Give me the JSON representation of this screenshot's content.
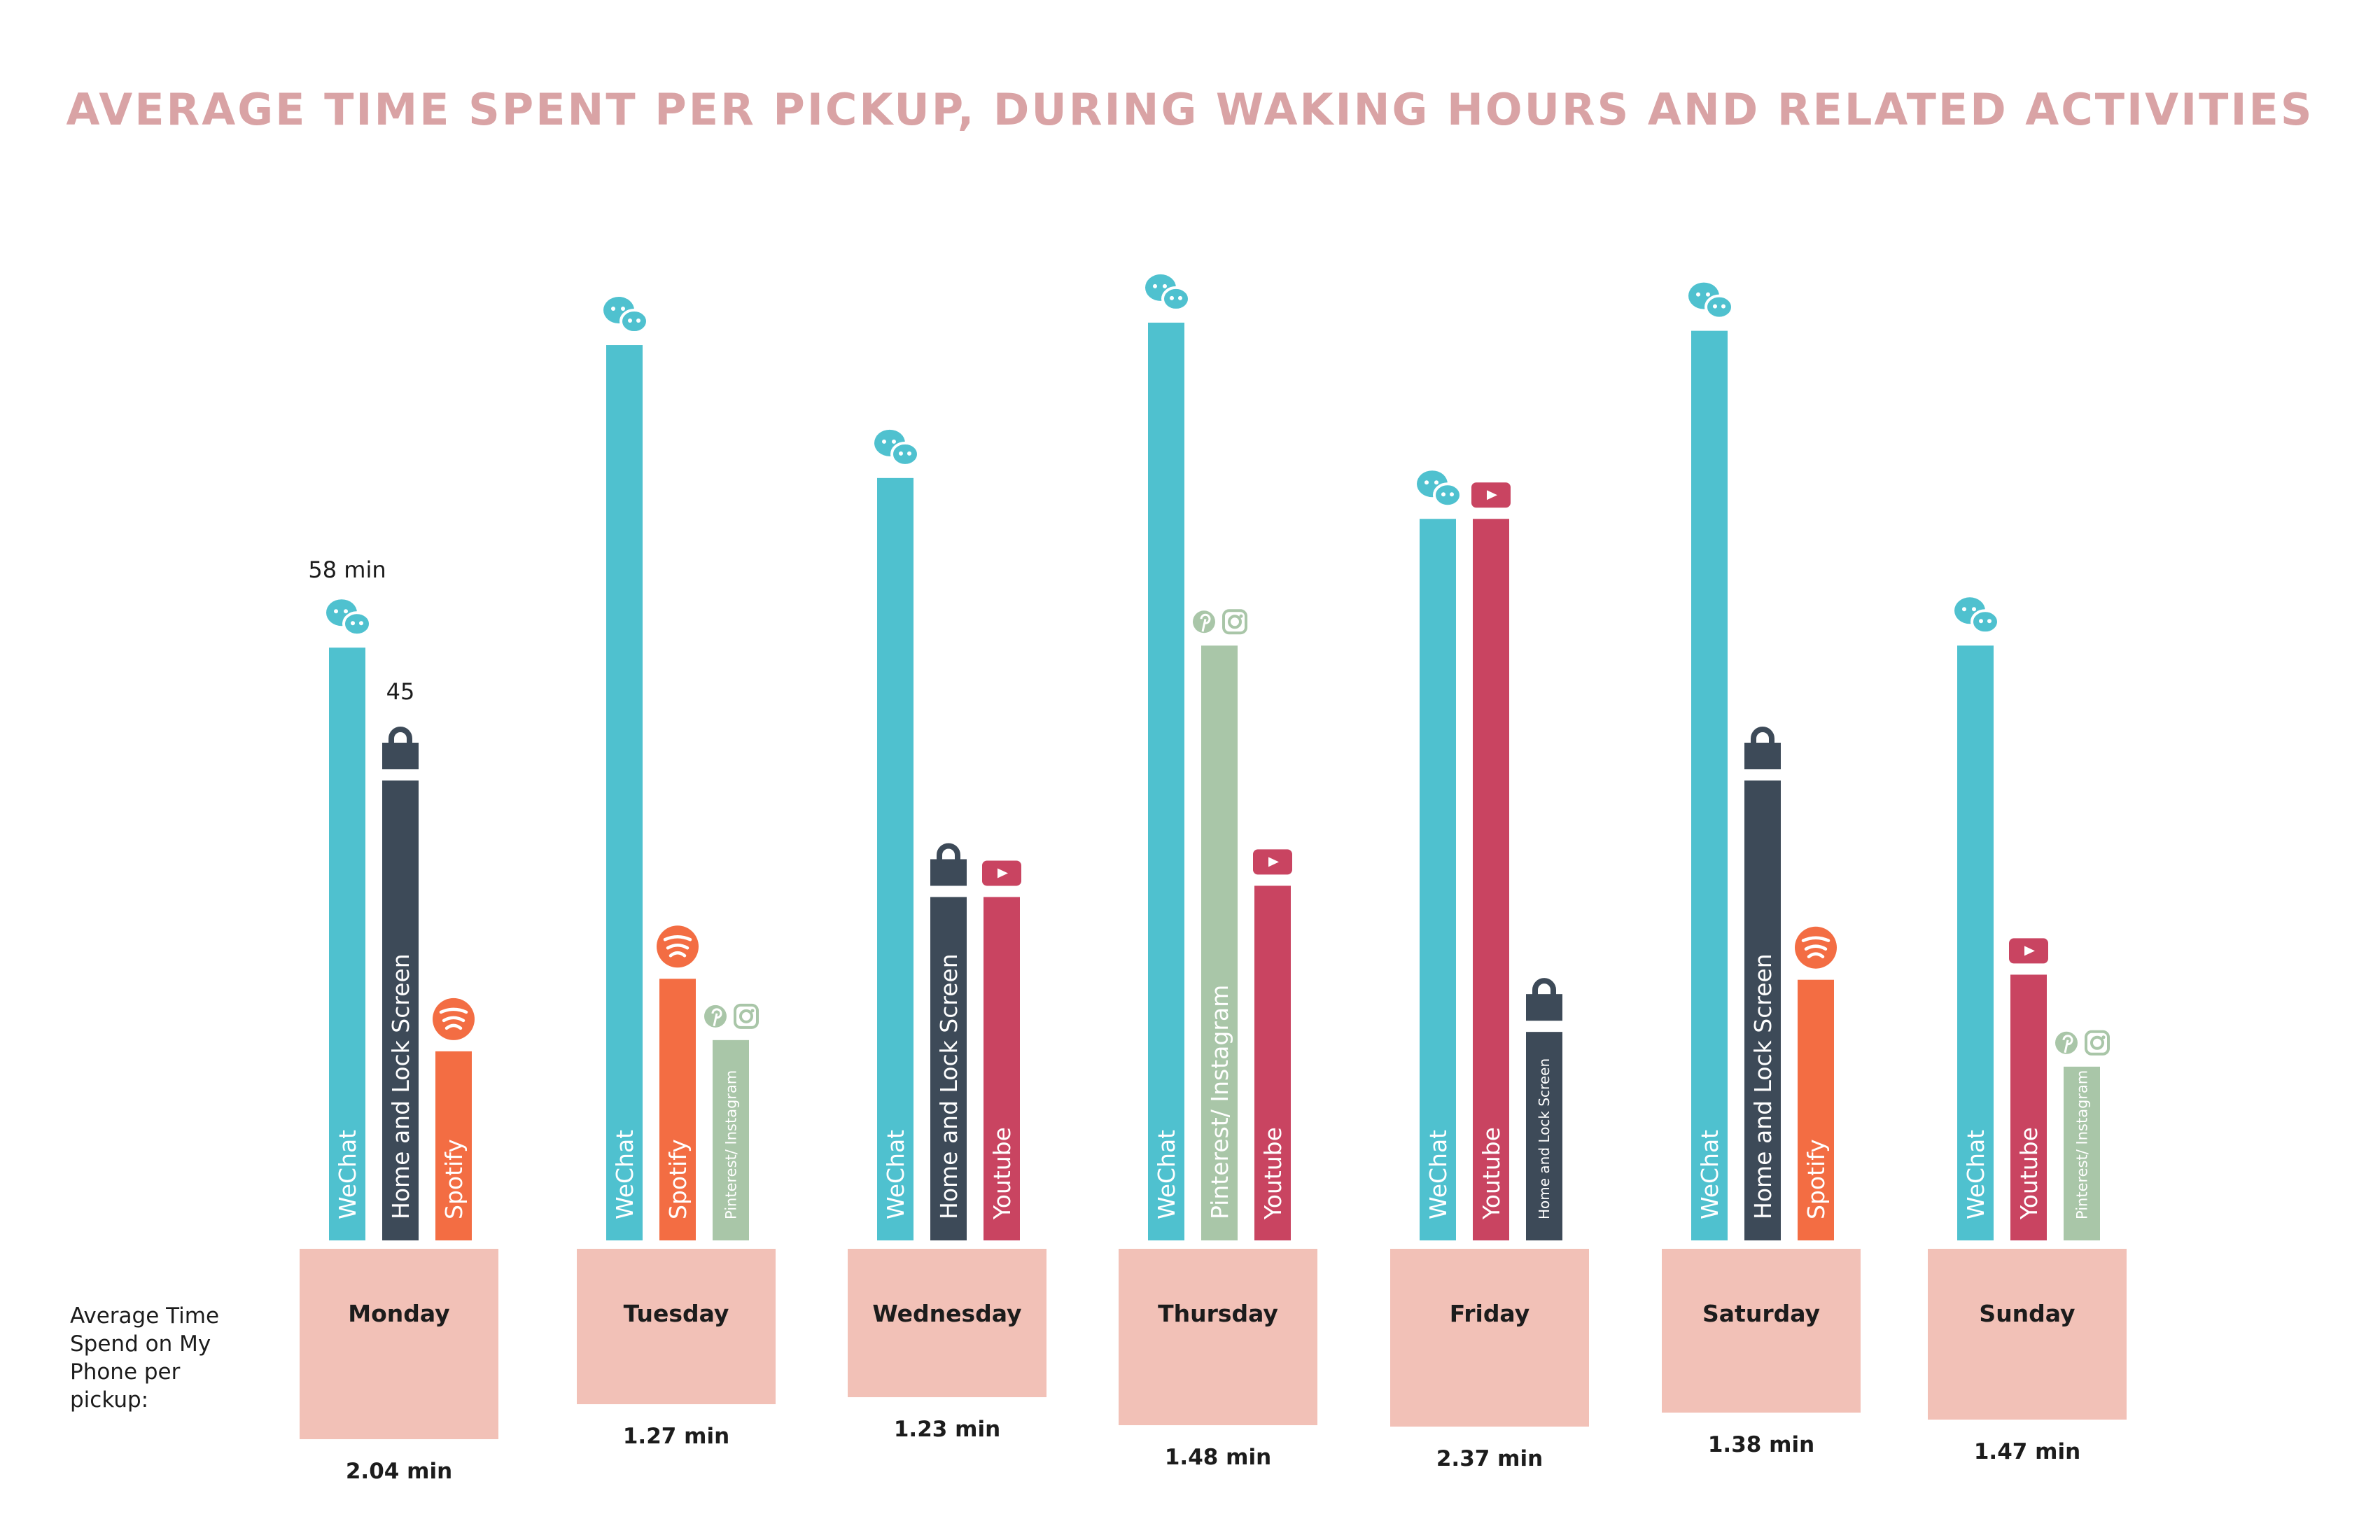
{
  "chart_data": {
    "type": "bar",
    "title": "AVERAGE TIME SPENT PER PICKUP, DURING WAKING HOURS AND RELATED ACTIVITIES",
    "row_label": "Average Time Spend on My Phone per pickup:",
    "unit_note": "min",
    "value_labels": {
      "wechat_monday": "58 min",
      "lock_monday": "45"
    },
    "colors": {
      "WeChat": "#4fc1cf",
      "Home and Lock Screen": "#3d4a58",
      "Spotify": "#f36d43",
      "Pinterest/ Instagram": "#a9c6a8",
      "Youtube": "#c94461",
      "day_box": "#f2c1b7",
      "title": "#d9a3a5"
    },
    "days": [
      {
        "day": "Monday",
        "avg": "2.04 min",
        "bars": [
          {
            "app": "WeChat",
            "label": "WeChat",
            "icon": "wechat-icon",
            "value": 58
          },
          {
            "app": "Home and Lock Screen",
            "label": "Home and Lock Screen",
            "icon": "lock-icon",
            "value": 45
          },
          {
            "app": "Spotify",
            "label": "Spotify",
            "icon": "spotify-icon",
            "value": 18.5
          }
        ]
      },
      {
        "day": "Tuesday",
        "avg": "1.27 min",
        "bars": [
          {
            "app": "WeChat",
            "label": "WeChat",
            "icon": "wechat-icon",
            "value": 87.6
          },
          {
            "app": "Spotify",
            "label": "Spotify",
            "icon": "spotify-icon",
            "value": 25.6
          },
          {
            "app": "Pinterest/ Instagram",
            "label": "Pinterest/ Instagram",
            "icon": "pinterest-instagram-icon",
            "value": 19.6
          }
        ]
      },
      {
        "day": "Wednesday",
        "avg": "1.23 min",
        "bars": [
          {
            "app": "WeChat",
            "label": "WeChat",
            "icon": "wechat-icon",
            "value": 74.6
          },
          {
            "app": "Home and Lock Screen",
            "label": "Home and Lock Screen",
            "icon": "lock-icon",
            "value": 33.6
          },
          {
            "app": "Youtube",
            "label": "Youtube",
            "icon": "youtube-icon",
            "value": 33.6
          }
        ]
      },
      {
        "day": "Thursday",
        "avg": "1.48 min",
        "bars": [
          {
            "app": "WeChat",
            "label": "WeChat",
            "icon": "wechat-icon",
            "value": 89.8
          },
          {
            "app": "Pinterest/ Instagram",
            "label": "Pinterest/ Instagram",
            "icon": "pinterest-instagram-icon",
            "value": 58.2
          },
          {
            "app": "Youtube",
            "label": "Youtube",
            "icon": "youtube-icon",
            "value": 34.7
          }
        ]
      },
      {
        "day": "Friday",
        "avg": "2.37 min",
        "bars": [
          {
            "app": "WeChat",
            "label": "WeChat",
            "icon": "wechat-icon",
            "value": 70.6
          },
          {
            "app": "Youtube",
            "label": "Youtube",
            "icon": "youtube-icon",
            "value": 70.6
          },
          {
            "app": "Home and Lock Screen",
            "label": "Home and Lock Screen",
            "icon": "lock-icon",
            "value": 20.4
          }
        ]
      },
      {
        "day": "Saturday",
        "avg": "1.38 min",
        "bars": [
          {
            "app": "WeChat",
            "label": "WeChat",
            "icon": "wechat-icon",
            "value": 89.0
          },
          {
            "app": "Home and Lock Screen",
            "label": "Home and Lock Screen",
            "icon": "lock-icon",
            "value": 45.0
          },
          {
            "app": "Spotify",
            "label": "Spotify",
            "icon": "spotify-icon",
            "value": 25.5
          }
        ]
      },
      {
        "day": "Sunday",
        "avg": "1.47 min",
        "bars": [
          {
            "app": "WeChat",
            "label": "WeChat",
            "icon": "wechat-icon",
            "value": 58.2
          },
          {
            "app": "Youtube",
            "label": "Youtube",
            "icon": "youtube-icon",
            "value": 26.0
          },
          {
            "app": "Pinterest/ Instagram",
            "label": "Pinterest/ Instagram",
            "icon": "pinterest-instagram-icon",
            "value": 17.0
          }
        ]
      }
    ]
  }
}
